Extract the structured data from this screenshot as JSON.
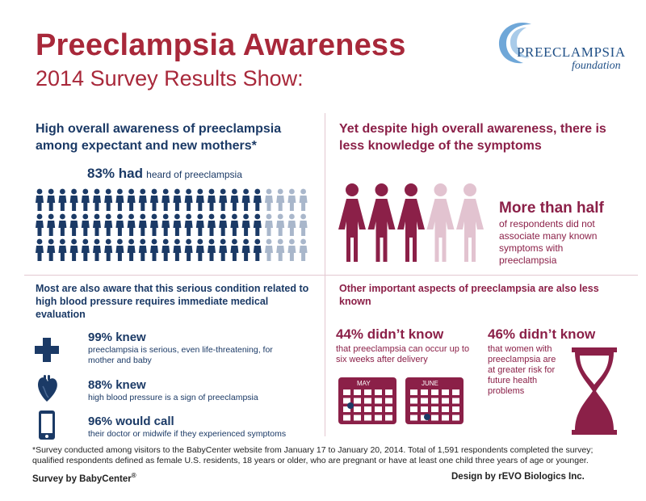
{
  "header": {
    "title": "Preeclampsia Awareness",
    "subtitle": "2014 Survey Results Show:"
  },
  "logo": {
    "name": "PREECLAMPSIA",
    "sub": "foundation"
  },
  "awareness": {
    "heading": "High overall awareness of preeclampsia among expectant and new mothers*",
    "stat_big": "83% had",
    "stat_small": "heard of preeclampsia",
    "percent_aware": 83
  },
  "symptoms": {
    "heading": "Yet despite high overall awareness, there is less knowledge of the symptoms",
    "big": "More than half",
    "small": "of respondents did not associate many known symptoms with preeclampsia",
    "women_dark": 3,
    "women_total": 5
  },
  "evaluation": {
    "heading": "Most are also aware that this serious condition related to high blood pressure requires immediate medical evaluation",
    "items": [
      {
        "big": "99% knew",
        "small": "preeclampsia is serious, even life-threatening, for mother and baby",
        "icon": "medical-cross-icon"
      },
      {
        "big": "88% knew",
        "small": "high blood pressure is a sign of preeclampsia",
        "icon": "heart-icon"
      },
      {
        "big": "96% would call",
        "small": "their doctor or midwife if they experienced symptoms",
        "icon": "phone-icon"
      }
    ]
  },
  "other": {
    "heading": "Other important aspects of preeclampsia are also less known",
    "left_big": "44% didn’t know",
    "left_small": "that preeclampsia can occur up to six weeks after delivery",
    "right_big": "46% didn’t know",
    "right_small": "that women with preeclampsia are at greater risk for future health problems",
    "calendar_months": [
      "MAY",
      "JUNE"
    ]
  },
  "footer": {
    "footnote": "*Survey conducted among visitors to the BabyCenter website from January 17 to January 20, 2014. Total of 1,591 respondents completed the survey; qualified respondents defined as female U.S. residents, 18 years or older, who are pregnant or have at least one child three years of age or younger.",
    "survey_by": "Survey by BabyCenter",
    "survey_mark": "®",
    "design_by": "Design by rEVO Biologics Inc."
  },
  "colors": {
    "title_red": "#a8283a",
    "navy": "#1b3a66",
    "plum": "#8b2048",
    "light_blue": "#a9b7cb",
    "light_pink": "#e2c3d0",
    "logo_blue": "#5f9fd3"
  }
}
